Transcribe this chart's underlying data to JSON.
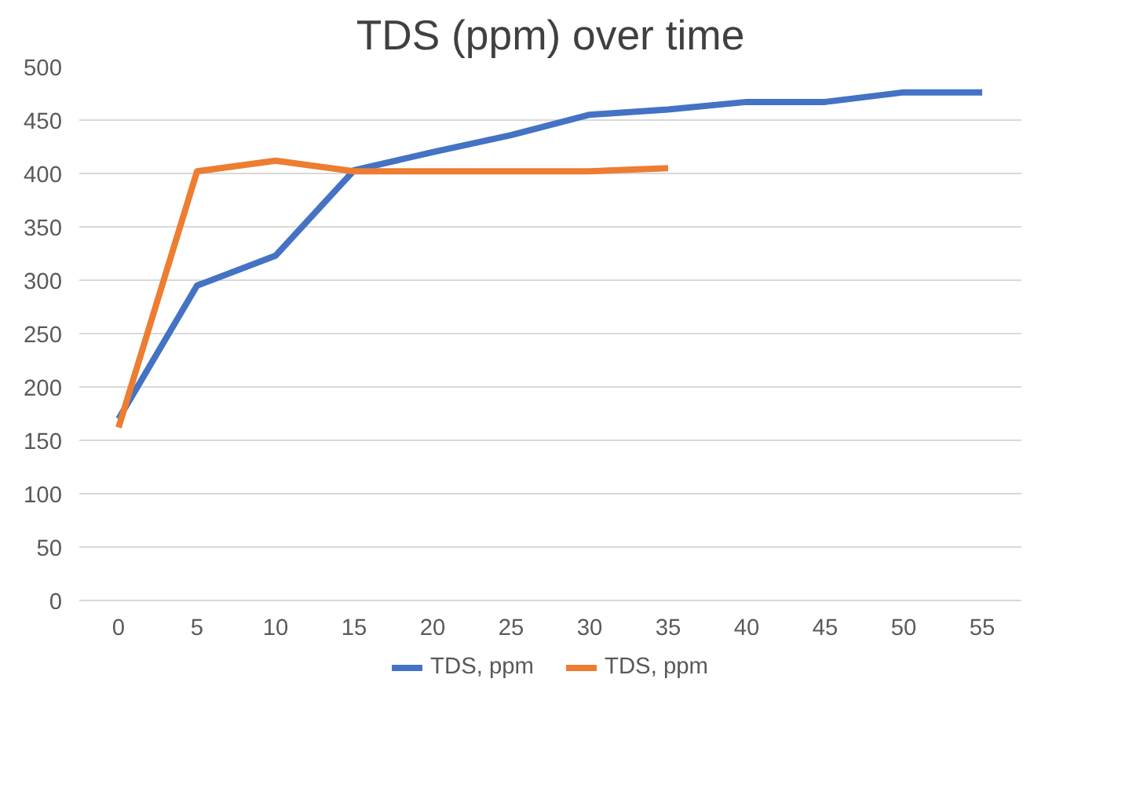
{
  "chart_data": {
    "type": "line",
    "title": "TDS (ppm) over time",
    "categories": [
      "0",
      "5",
      "10",
      "15",
      "20",
      "25",
      "30",
      "35",
      "40",
      "45",
      "50",
      "55"
    ],
    "series": [
      {
        "name": "TDS, ppm",
        "color": "#4472c4",
        "values": [
          170,
          295,
          323,
          403,
          420,
          436,
          455,
          460,
          467,
          467,
          476,
          476
        ]
      },
      {
        "name": "TDS, ppm",
        "color": "#ed7d31",
        "values": [
          162,
          402,
          412,
          402,
          402,
          402,
          402,
          405,
          null,
          null,
          null,
          null
        ]
      }
    ],
    "ylim": [
      0,
      500
    ],
    "yticks": [
      0,
      50,
      100,
      150,
      200,
      250,
      300,
      350,
      400,
      450,
      500
    ],
    "grid": "y",
    "legend": "bottom",
    "marker": "none",
    "line_style": "solid"
  }
}
